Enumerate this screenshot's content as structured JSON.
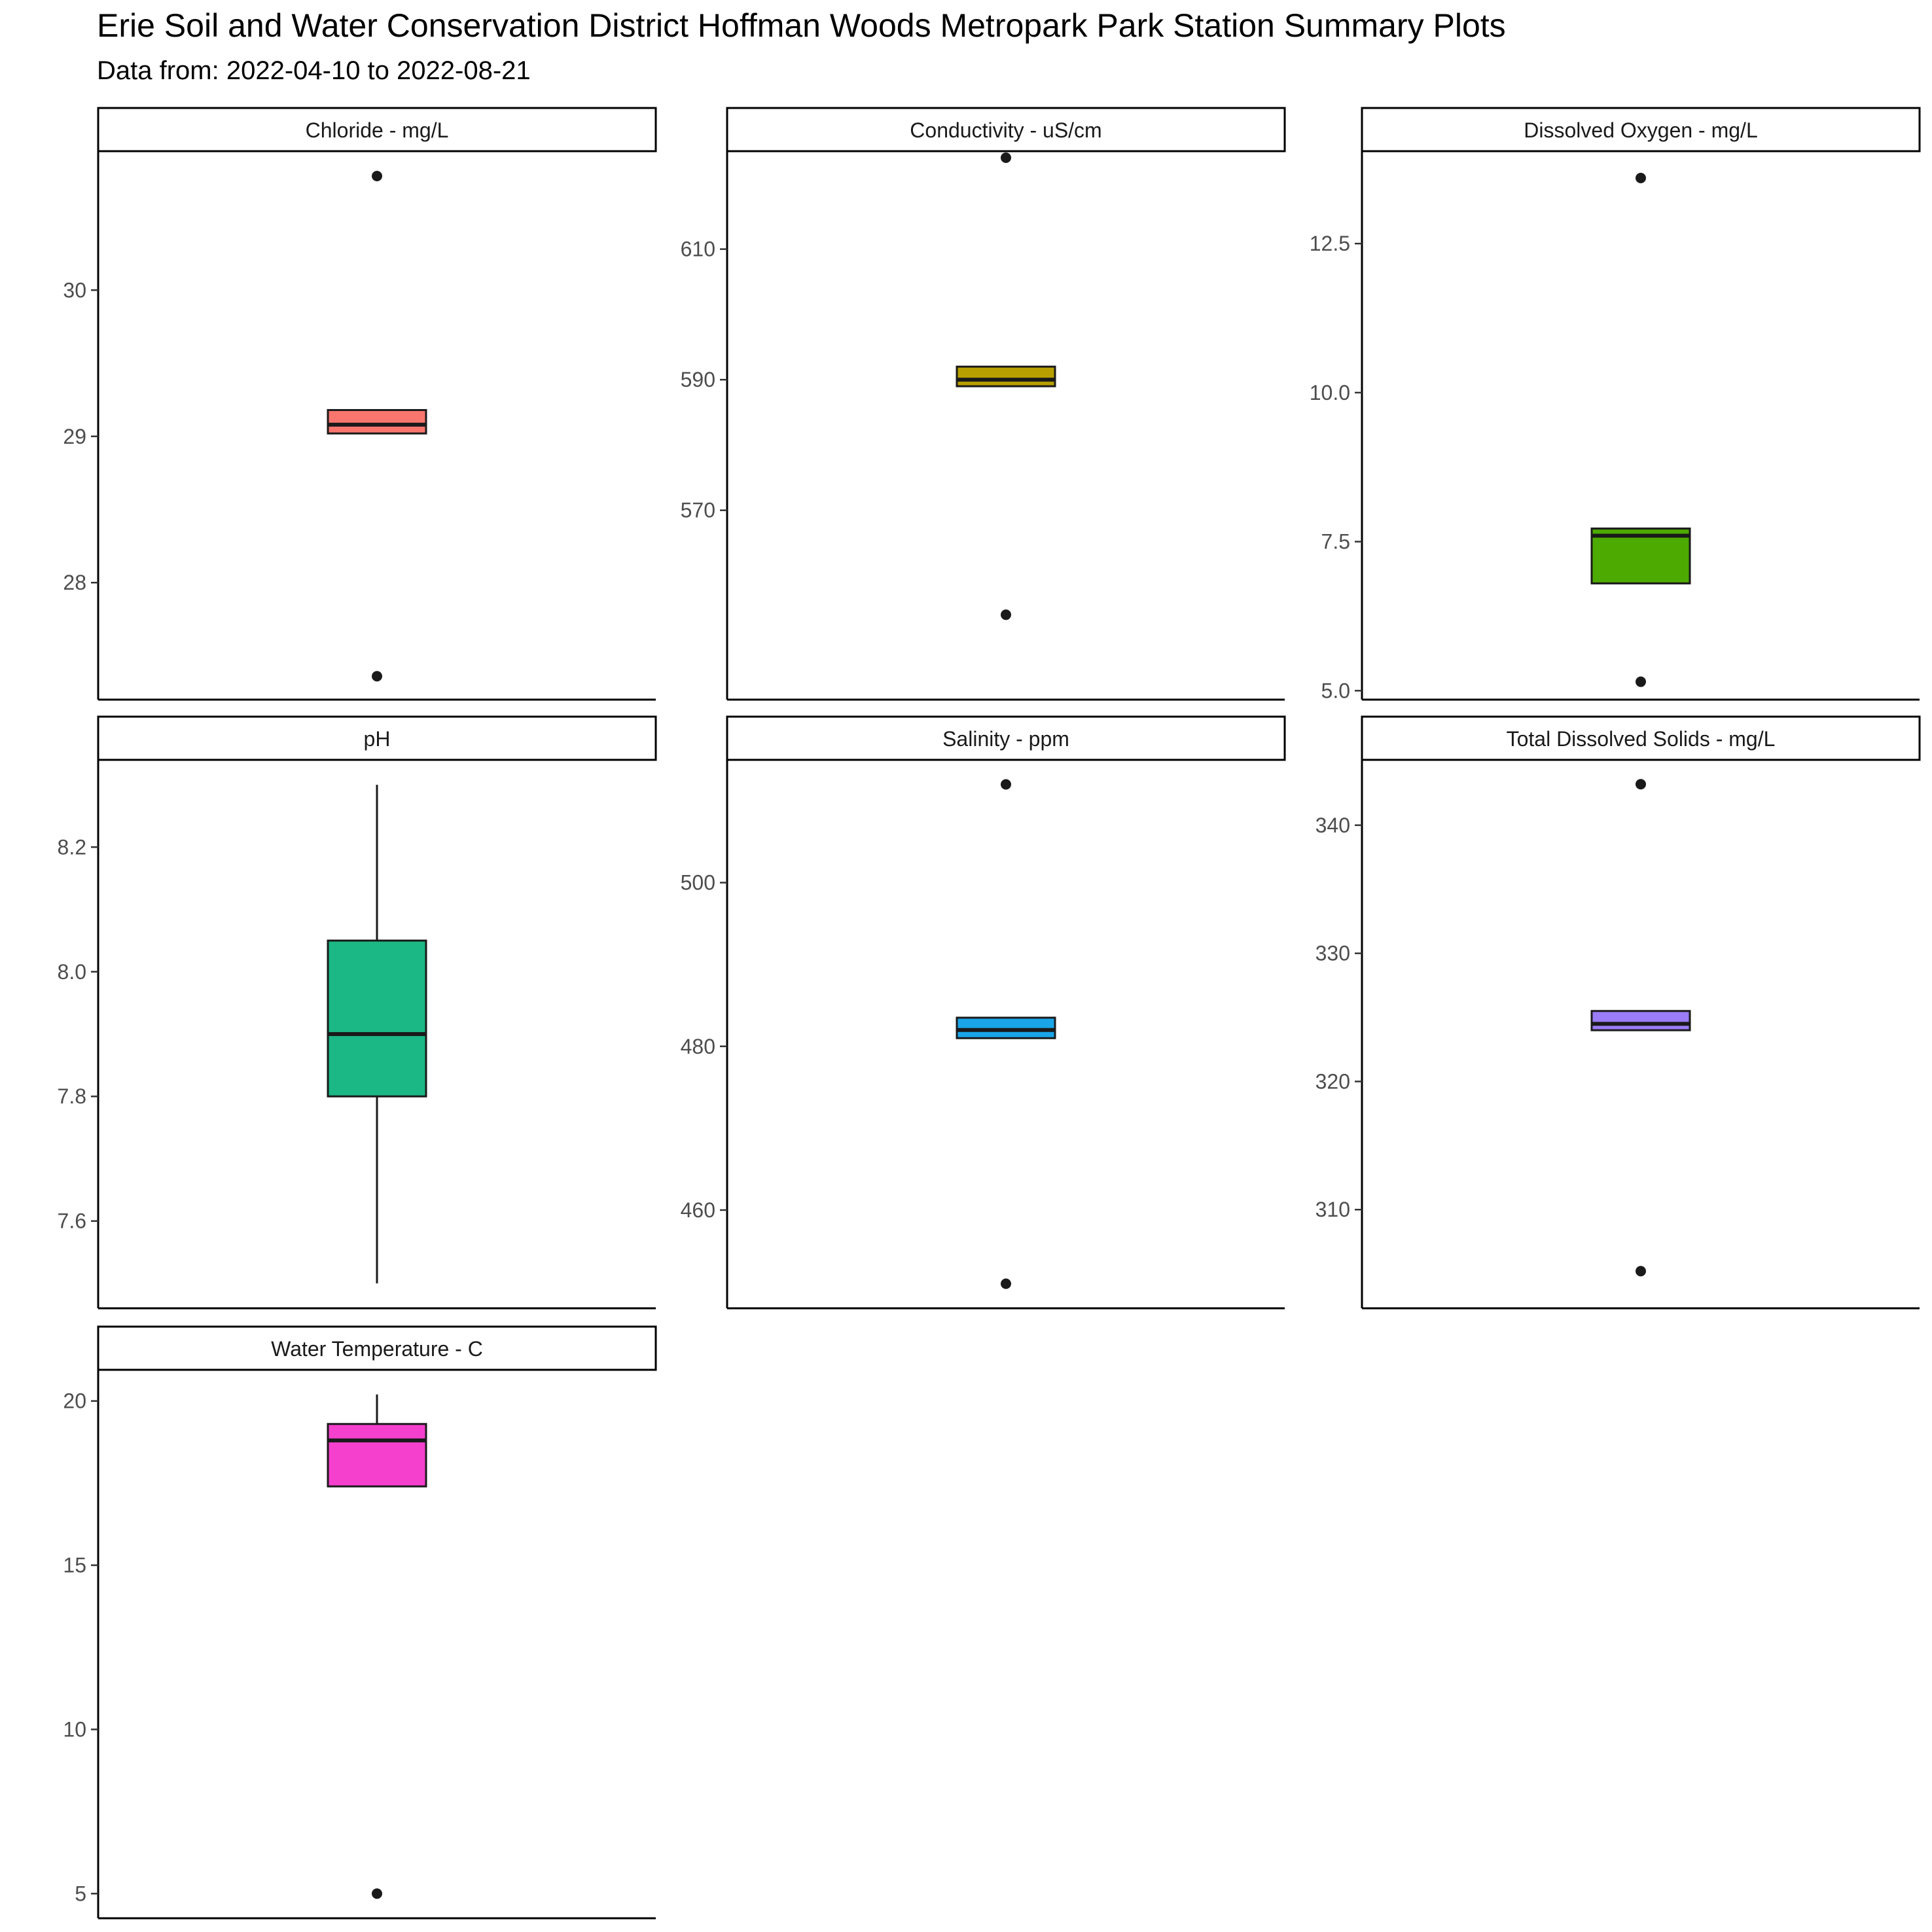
{
  "title": "Erie Soil and Water Conservation District Hoffman Woods Metropark Park Station Summary Plots",
  "subtitle": "Data from: 2022-04-10 to 2022-08-21",
  "chart_data": [
    {
      "type": "box",
      "title": "Chloride - mg/L",
      "color": "#F8766D",
      "ylim": [
        27.2,
        30.95
      ],
      "yticks": [
        28,
        29,
        30
      ],
      "tick_labels": [
        "28",
        "29",
        "30"
      ],
      "min": 29.02,
      "q1": 29.02,
      "median": 29.08,
      "q3": 29.18,
      "max": 29.18,
      "outliers": [
        30.78,
        27.36
      ]
    },
    {
      "type": "box",
      "title": "Conductivity - uS/cm",
      "color": "#B79F00",
      "ylim": [
        541,
        625
      ],
      "yticks": [
        570,
        590,
        610
      ],
      "tick_labels": [
        "570",
        "590",
        "610"
      ],
      "min": 589,
      "q1": 589,
      "median": 590,
      "q3": 592,
      "max": 592,
      "outliers": [
        624,
        554
      ]
    },
    {
      "type": "box",
      "title": "Dissolved Oxygen - mg/L",
      "color": "#4DAA00",
      "ylim": [
        4.85,
        14.05
      ],
      "yticks": [
        5.0,
        7.5,
        10.0,
        12.5
      ],
      "tick_labels": [
        "5.0",
        "7.5",
        "10.0",
        "12.5"
      ],
      "min": 6.8,
      "q1": 6.8,
      "median": 7.6,
      "q3": 7.72,
      "max": 7.72,
      "outliers": [
        13.6,
        5.15
      ]
    },
    {
      "type": "box",
      "title": "pH",
      "color": "#1BB785",
      "ylim": [
        7.46,
        8.34
      ],
      "yticks": [
        7.6,
        7.8,
        8.0,
        8.2
      ],
      "tick_labels": [
        "7.6",
        "7.8",
        "8.0",
        "8.2"
      ],
      "min": 7.5,
      "q1": 7.8,
      "median": 7.9,
      "q3": 8.05,
      "max": 8.3,
      "outliers": []
    },
    {
      "type": "box",
      "title": "Salinity - ppm",
      "color": "#1AA5E8",
      "ylim": [
        448,
        515
      ],
      "yticks": [
        460,
        480,
        500
      ],
      "tick_labels": [
        "460",
        "480",
        "500"
      ],
      "min": 481,
      "q1": 481,
      "median": 482,
      "q3": 483.5,
      "max": 483.5,
      "outliers": [
        512,
        451
      ]
    },
    {
      "type": "box",
      "title": "Total Dissolved Solids - mg/L",
      "color": "#9A7DF7",
      "ylim": [
        302.3,
        345.1
      ],
      "yticks": [
        310,
        320,
        330,
        340
      ],
      "tick_labels": [
        "310",
        "320",
        "330",
        "340"
      ],
      "min": 324,
      "q1": 324,
      "median": 324.5,
      "q3": 325.5,
      "max": 325.5,
      "outliers": [
        343.2,
        305.2
      ]
    },
    {
      "type": "box",
      "title": "Water Temperature - C",
      "color": "#F540CE",
      "ylim": [
        4.25,
        20.95
      ],
      "yticks": [
        5,
        10,
        15,
        20
      ],
      "tick_labels": [
        "5",
        "10",
        "15",
        "20"
      ],
      "min": 17.4,
      "q1": 17.4,
      "median": 18.8,
      "q3": 19.3,
      "max": 20.2,
      "outliers": [
        5.0
      ]
    }
  ]
}
